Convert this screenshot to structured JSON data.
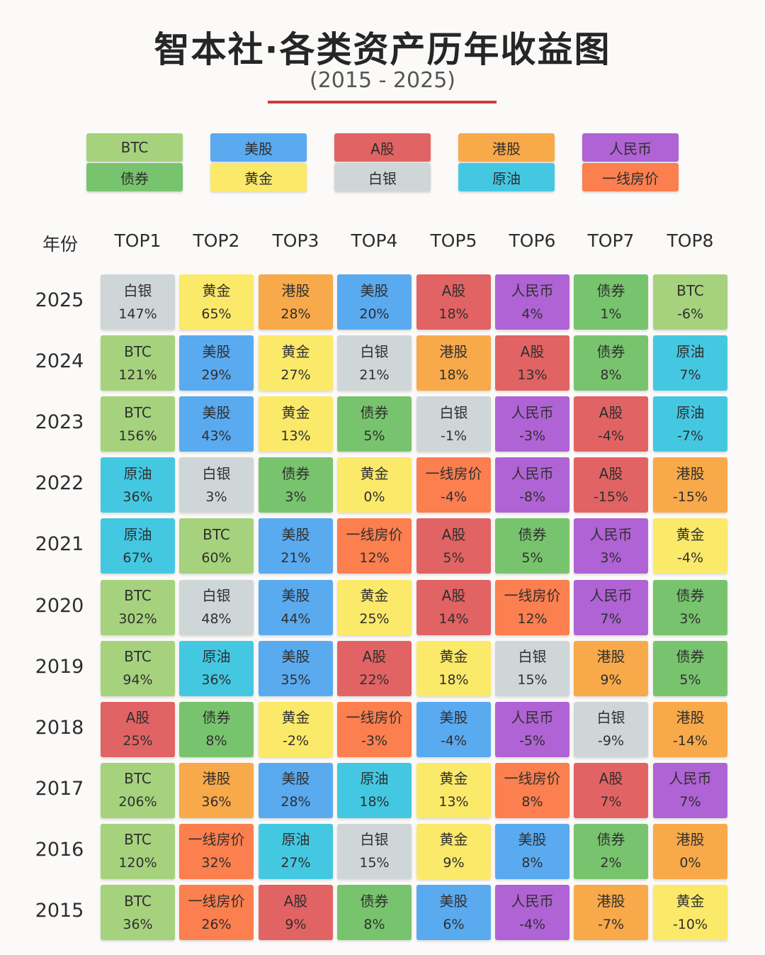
{
  "header": {
    "title": "智本社·各类资产历年收益图",
    "subtitle": "(2015 - 2025)",
    "accent": "#d23a3a"
  },
  "assets": {
    "BTC": {
      "label": "BTC",
      "color": "#a6d27d"
    },
    "债券": {
      "label": "债券",
      "color": "#78c46e"
    },
    "美股": {
      "label": "美股",
      "color": "#5aaaf0"
    },
    "黄金": {
      "label": "黄金",
      "color": "#fbe96a"
    },
    "A股": {
      "label": "A股",
      "color": "#e26363"
    },
    "白银": {
      "label": "白银",
      "color": "#cfd6d8"
    },
    "港股": {
      "label": "港股",
      "color": "#f8a94a"
    },
    "原油": {
      "label": "原油",
      "color": "#44c8e2"
    },
    "人民币": {
      "label": "人民币",
      "color": "#b063d4"
    },
    "一线房价": {
      "label": "一线房价",
      "color": "#fb7f4f"
    }
  },
  "legend_order": [
    [
      "BTC",
      "债券"
    ],
    [
      "美股",
      "黄金"
    ],
    [
      "A股",
      "白银"
    ],
    [
      "港股",
      "原油"
    ],
    [
      "人民币",
      "一线房价"
    ]
  ],
  "chart_data": {
    "type": "table",
    "title": "智本社·各类资产历年收益图",
    "subtitle": "(2015 - 2025)",
    "row_header_label": "年份",
    "columns": [
      "TOP1",
      "TOP2",
      "TOP3",
      "TOP4",
      "TOP5",
      "TOP6",
      "TOP7",
      "TOP8"
    ],
    "rows": [
      {
        "year": "2025",
        "cells": [
          {
            "asset": "白银",
            "return": "147%"
          },
          {
            "asset": "黄金",
            "return": "65%"
          },
          {
            "asset": "港股",
            "return": "28%"
          },
          {
            "asset": "美股",
            "return": "20%"
          },
          {
            "asset": "A股",
            "return": "18%"
          },
          {
            "asset": "人民币",
            "return": "4%"
          },
          {
            "asset": "债券",
            "return": "1%"
          },
          {
            "asset": "BTC",
            "return": "-6%"
          }
        ]
      },
      {
        "year": "2024",
        "cells": [
          {
            "asset": "BTC",
            "return": "121%"
          },
          {
            "asset": "美股",
            "return": "29%"
          },
          {
            "asset": "黄金",
            "return": "27%"
          },
          {
            "asset": "白银",
            "return": "21%"
          },
          {
            "asset": "港股",
            "return": "18%"
          },
          {
            "asset": "A股",
            "return": "13%"
          },
          {
            "asset": "债券",
            "return": "8%"
          },
          {
            "asset": "原油",
            "return": "7%"
          }
        ]
      },
      {
        "year": "2023",
        "cells": [
          {
            "asset": "BTC",
            "return": "156%"
          },
          {
            "asset": "美股",
            "return": "43%"
          },
          {
            "asset": "黄金",
            "return": "13%"
          },
          {
            "asset": "债券",
            "return": "5%"
          },
          {
            "asset": "白银",
            "return": "-1%"
          },
          {
            "asset": "人民币",
            "return": "-3%"
          },
          {
            "asset": "A股",
            "return": "-4%"
          },
          {
            "asset": "原油",
            "return": "-7%"
          }
        ]
      },
      {
        "year": "2022",
        "cells": [
          {
            "asset": "原油",
            "return": "36%"
          },
          {
            "asset": "白银",
            "return": "3%"
          },
          {
            "asset": "债券",
            "return": "3%"
          },
          {
            "asset": "黄金",
            "return": "0%"
          },
          {
            "asset": "一线房价",
            "return": "-4%"
          },
          {
            "asset": "人民币",
            "return": "-8%"
          },
          {
            "asset": "A股",
            "return": "-15%"
          },
          {
            "asset": "港股",
            "return": "-15%"
          }
        ]
      },
      {
        "year": "2021",
        "cells": [
          {
            "asset": "原油",
            "return": "67%"
          },
          {
            "asset": "BTC",
            "return": "60%"
          },
          {
            "asset": "美股",
            "return": "21%"
          },
          {
            "asset": "一线房价",
            "return": "12%"
          },
          {
            "asset": "A股",
            "return": "5%"
          },
          {
            "asset": "债券",
            "return": "5%"
          },
          {
            "asset": "人民币",
            "return": "3%"
          },
          {
            "asset": "黄金",
            "return": "-4%"
          }
        ]
      },
      {
        "year": "2020",
        "cells": [
          {
            "asset": "BTC",
            "return": "302%"
          },
          {
            "asset": "白银",
            "return": "48%"
          },
          {
            "asset": "美股",
            "return": "44%"
          },
          {
            "asset": "黄金",
            "return": "25%"
          },
          {
            "asset": "A股",
            "return": "14%"
          },
          {
            "asset": "一线房价",
            "return": "12%"
          },
          {
            "asset": "人民币",
            "return": "7%"
          },
          {
            "asset": "债券",
            "return": "3%"
          }
        ]
      },
      {
        "year": "2019",
        "cells": [
          {
            "asset": "BTC",
            "return": "94%"
          },
          {
            "asset": "原油",
            "return": "36%"
          },
          {
            "asset": "美股",
            "return": "35%"
          },
          {
            "asset": "A股",
            "return": "22%"
          },
          {
            "asset": "黄金",
            "return": "18%"
          },
          {
            "asset": "白银",
            "return": "15%"
          },
          {
            "asset": "港股",
            "return": "9%"
          },
          {
            "asset": "债券",
            "return": "5%"
          }
        ]
      },
      {
        "year": "2018",
        "cells": [
          {
            "asset": "A股",
            "return": "25%"
          },
          {
            "asset": "债券",
            "return": "8%"
          },
          {
            "asset": "黄金",
            "return": "-2%"
          },
          {
            "asset": "一线房价",
            "return": "-3%"
          },
          {
            "asset": "美股",
            "return": "-4%"
          },
          {
            "asset": "人民币",
            "return": "-5%"
          },
          {
            "asset": "白银",
            "return": "-9%"
          },
          {
            "asset": "港股",
            "return": "-14%"
          }
        ]
      },
      {
        "year": "2017",
        "cells": [
          {
            "asset": "BTC",
            "return": "206%"
          },
          {
            "asset": "港股",
            "return": "36%"
          },
          {
            "asset": "美股",
            "return": "28%"
          },
          {
            "asset": "原油",
            "return": "18%"
          },
          {
            "asset": "黄金",
            "return": "13%"
          },
          {
            "asset": "一线房价",
            "return": "8%"
          },
          {
            "asset": "A股",
            "return": "7%"
          },
          {
            "asset": "人民币",
            "return": "7%"
          }
        ]
      },
      {
        "year": "2016",
        "cells": [
          {
            "asset": "BTC",
            "return": "120%"
          },
          {
            "asset": "一线房价",
            "return": "32%"
          },
          {
            "asset": "原油",
            "return": "27%"
          },
          {
            "asset": "白银",
            "return": "15%"
          },
          {
            "asset": "黄金",
            "return": "9%"
          },
          {
            "asset": "美股",
            "return": "8%"
          },
          {
            "asset": "债券",
            "return": "2%"
          },
          {
            "asset": "港股",
            "return": "0%"
          }
        ]
      },
      {
        "year": "2015",
        "cells": [
          {
            "asset": "BTC",
            "return": "36%"
          },
          {
            "asset": "一线房价",
            "return": "26%"
          },
          {
            "asset": "A股",
            "return": "9%"
          },
          {
            "asset": "债券",
            "return": "8%"
          },
          {
            "asset": "美股",
            "return": "6%"
          },
          {
            "asset": "人民币",
            "return": "-4%"
          },
          {
            "asset": "港股",
            "return": "-7%"
          },
          {
            "asset": "黄金",
            "return": "-10%"
          }
        ]
      }
    ]
  }
}
